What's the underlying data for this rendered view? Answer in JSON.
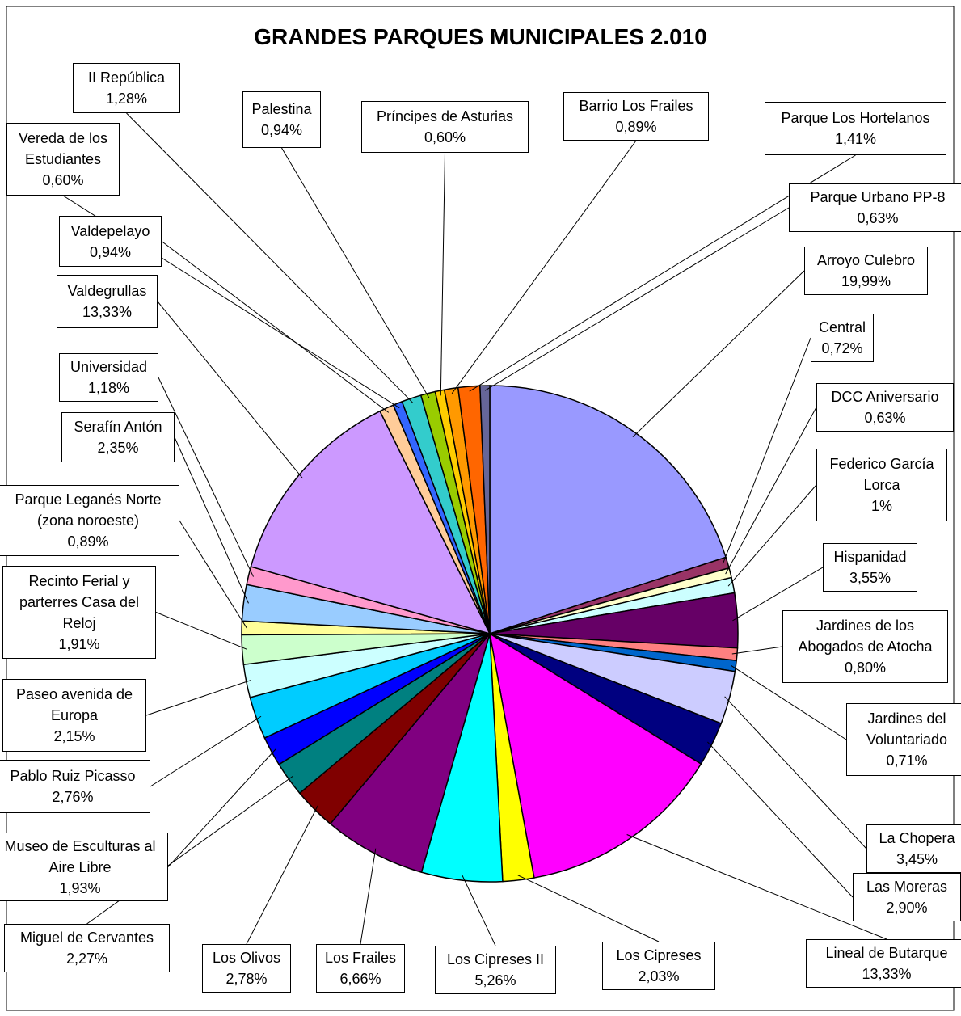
{
  "chart_data": {
    "type": "pie",
    "title": "GRANDES PARQUES MUNICIPALES 2.010",
    "categories": [
      "Arroyo Culebro",
      "Central",
      "DCC Aniversario",
      "Federico García Lorca",
      "Hispanidad",
      "Jardines de los Abogados de Atocha",
      "Jardines del Voluntariado",
      "La Chopera",
      "Las Moreras",
      "Lineal de Butarque",
      "Los Cipreses",
      "Los Cipreses II",
      "Los Frailes",
      "Los Olivos",
      "Miguel de Cervantes",
      "Museo de Esculturas al Aire Libre",
      "Pablo Ruiz Picasso",
      "Paseo avenida de Europa",
      "Recinto Ferial y parterres Casa del Reloj",
      "Parque Leganés Norte (zona noroeste)",
      "Serafín Antón",
      "Universidad",
      "Valdegrullas",
      "Valdepelayo",
      "Vereda de los Estudiantes",
      "II República",
      "Palestina",
      "Príncipes de Asturias",
      "Barrio Los Frailes",
      "Parque Los Hortelanos",
      "Parque Urbano PP-8"
    ],
    "values": [
      19.99,
      0.72,
      0.63,
      1,
      3.55,
      0.8,
      0.71,
      3.45,
      2.9,
      13.33,
      2.03,
      5.26,
      6.66,
      2.78,
      2.27,
      1.93,
      2.76,
      2.15,
      1.91,
      0.89,
      2.35,
      1.18,
      13.33,
      0.94,
      0.6,
      1.28,
      0.94,
      0.6,
      0.89,
      1.41,
      0.63
    ],
    "value_labels": [
      "19,99%",
      "0,72%",
      "0,63%",
      "1%",
      "3,55%",
      "0,80%",
      "0,71%",
      "3,45%",
      "2,90%",
      "13,33%",
      "2,03%",
      "5,26%",
      "6,66%",
      "2,78%",
      "2,27%",
      "1,93%",
      "2,76%",
      "2,15%",
      "1,91%",
      "0,89%",
      "2,35%",
      "1,18%",
      "13,33%",
      "0,94%",
      "0,60%",
      "1,28%",
      "0,94%",
      "0,60%",
      "0,89%",
      "1,41%",
      "0,63%"
    ],
    "colors": [
      "#9999ff",
      "#993366",
      "#ffffcc",
      "#ccffff",
      "#660066",
      "#ff8080",
      "#0066cc",
      "#ccccff",
      "#000080",
      "#ff00ff",
      "#ffff00",
      "#00ffff",
      "#800080",
      "#800000",
      "#008080",
      "#0000ff",
      "#00ccff",
      "#ccffff",
      "#ccffcc",
      "#ffff99",
      "#99ccff",
      "#ff99cc",
      "#cc99ff",
      "#ffcc99",
      "#3366ff",
      "#33cccc",
      "#99cc00",
      "#ffcc00",
      "#ff9900",
      "#ff6600",
      "#666699"
    ]
  }
}
